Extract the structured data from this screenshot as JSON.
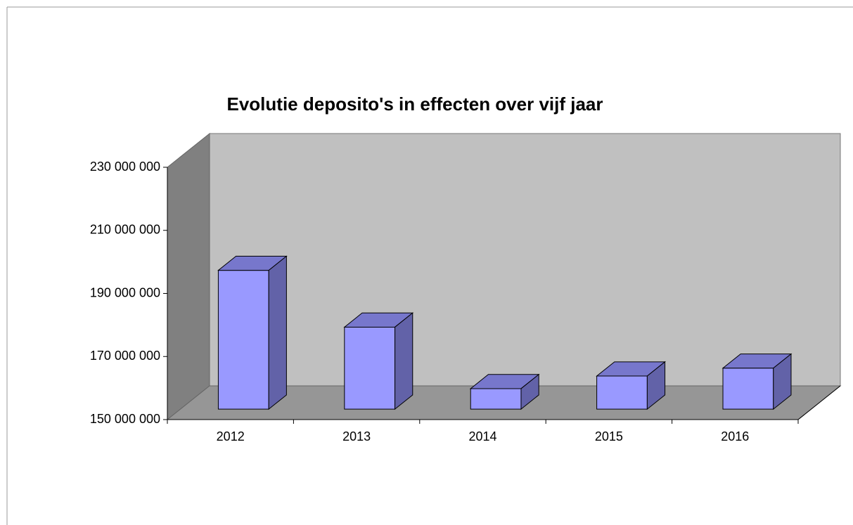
{
  "chart_data": {
    "type": "bar3d",
    "title": "Evolutie deposito's in effecten over vijf jaar",
    "categories": [
      "2012",
      "2013",
      "2014",
      "2015",
      "2016"
    ],
    "values": [
      194000000,
      176000000,
      156500000,
      160500000,
      163000000
    ],
    "color": "#9999ff",
    "ylim": [
      150000000,
      230000000
    ],
    "yticks": [
      {
        "value": 150000000,
        "label": "150 000 000"
      },
      {
        "value": 170000000,
        "label": "170 000 000"
      },
      {
        "value": 190000000,
        "label": "190 000 000"
      },
      {
        "value": 210000000,
        "label": "210 000 000"
      },
      {
        "value": 230000000,
        "label": "230 000 000"
      }
    ],
    "grid": false
  }
}
